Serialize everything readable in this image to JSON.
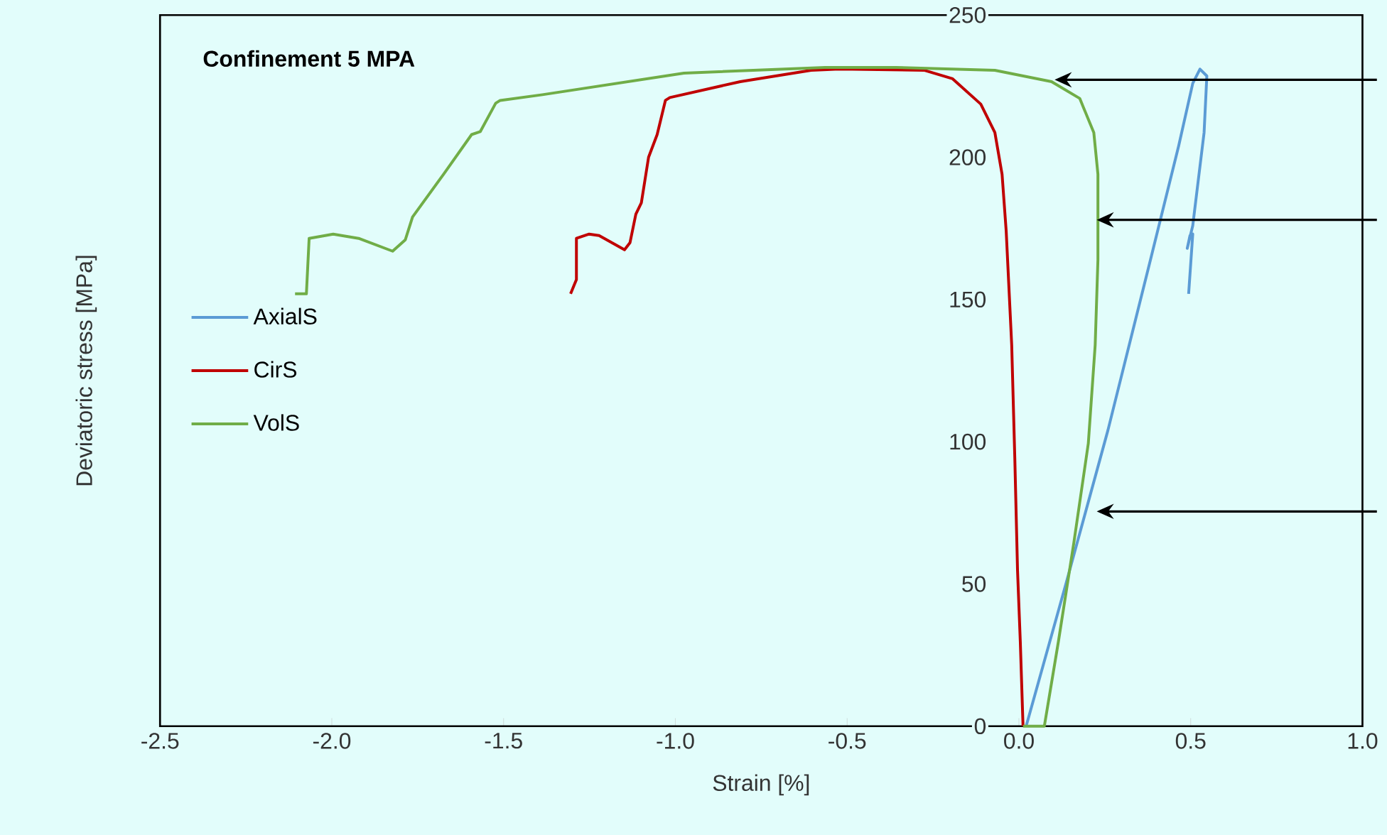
{
  "chart_data": {
    "type": "line",
    "title": "Confinement 5 MPA",
    "xlabel": "Strain [%]",
    "ylabel": "Deviatoric stress [MPa]",
    "xlim": [
      -2.5,
      1.0
    ],
    "xticks": [
      {
        "value": -2.5,
        "label": "-2.5"
      },
      {
        "value": -2.0,
        "label": "-2.0"
      },
      {
        "value": -1.5,
        "label": "-1.5"
      },
      {
        "value": -1.0,
        "label": "-1.0"
      },
      {
        "value": -0.5,
        "label": "-0.5"
      },
      {
        "value": 0.0,
        "label": "0.0"
      },
      {
        "value": 0.5,
        "label": "0.5"
      },
      {
        "value": 1.0,
        "label": "1.0"
      }
    ],
    "ylim": [
      0,
      250
    ],
    "yticks": [
      0,
      50,
      100,
      150,
      200,
      250
    ],
    "legend": "left",
    "grid": false,
    "line_style": "solid",
    "series": [
      {
        "name": "AxialS",
        "color": "#5b9bd5",
        "x": [
          0.021,
          0.136,
          0.259,
          0.383,
          0.465,
          0.506,
          0.527,
          0.547,
          0.539,
          0.506,
          0.49,
          0.498,
          0.506,
          0.494
        ],
        "values": [
          0,
          49.7,
          104,
          164,
          204,
          226,
          231,
          228.6,
          208.7,
          176,
          168,
          172.5,
          173,
          152
        ]
      },
      {
        "name": "CirS",
        "color": "#c00000",
        "x": [
          -1.305,
          -1.288,
          -1.288,
          -1.251,
          -1.222,
          -1.148,
          -1.132,
          -1.115,
          -1.099,
          -1.078,
          -1.053,
          -1.029,
          -1.016,
          -0.811,
          -0.605,
          -0.523,
          -0.276,
          -0.193,
          -0.111,
          -0.07,
          -0.049,
          -0.037,
          -0.021,
          -0.012,
          -0.004,
          0.004,
          0.012
        ],
        "values": [
          152,
          157,
          171.5,
          173,
          172.5,
          167.5,
          170,
          180,
          184,
          200,
          208,
          220,
          221,
          226.6,
          230.6,
          231,
          230.6,
          227.6,
          218.7,
          208.7,
          194,
          174,
          134,
          94.4,
          54.7,
          29.8,
          0
        ]
      },
      {
        "name": "VolS",
        "color": "#70ad47",
        "x": [
          -2.107,
          -2.074,
          -2.066,
          -1.996,
          -1.922,
          -1.823,
          -1.786,
          -1.765,
          -1.675,
          -1.593,
          -1.568,
          -1.523,
          -1.51,
          -1.387,
          -0.975,
          -0.564,
          -0.358,
          -0.07,
          0.095,
          0.177,
          0.218,
          0.23,
          0.23,
          0.222,
          0.202,
          0.16,
          0.115,
          0.074,
          0.012
        ],
        "values": [
          152,
          152,
          171.5,
          173,
          171.5,
          167,
          171,
          179,
          194,
          208,
          209,
          219,
          220,
          222,
          229.6,
          231.6,
          231.6,
          230.6,
          226.6,
          220.7,
          208.7,
          194,
          164,
          134,
          99.4,
          64.6,
          29.8,
          0,
          0
        ]
      }
    ]
  }
}
